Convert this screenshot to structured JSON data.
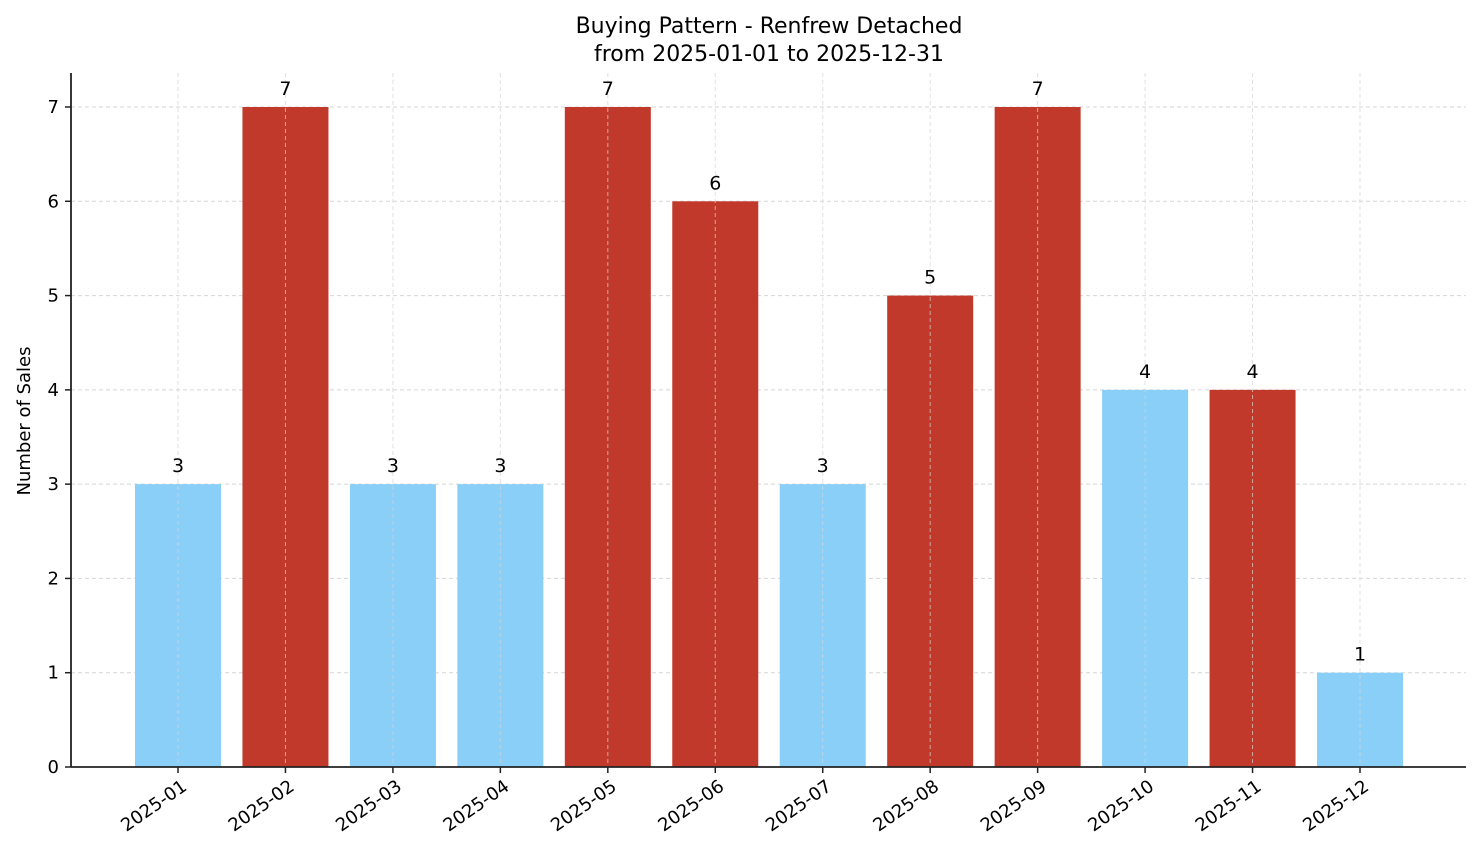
{
  "chart_data": {
    "type": "bar",
    "title": "Buying Pattern - Renfrew Detached",
    "subtitle": "from 2025-01-01 to 2025-12-31",
    "xlabel": "",
    "ylabel": "Number of Sales",
    "categories": [
      "2025-01",
      "2025-02",
      "2025-03",
      "2025-04",
      "2025-05",
      "2025-06",
      "2025-07",
      "2025-08",
      "2025-09",
      "2025-10",
      "2025-11",
      "2025-12"
    ],
    "values": [
      3,
      7,
      3,
      3,
      7,
      6,
      3,
      5,
      7,
      4,
      4,
      1
    ],
    "bar_colors": [
      "#89CFF8",
      "#C0392B",
      "#89CFF8",
      "#89CFF8",
      "#C0392B",
      "#C0392B",
      "#89CFF8",
      "#C0392B",
      "#C0392B",
      "#89CFF8",
      "#C0392B",
      "#89CFF8"
    ],
    "ylim": [
      0,
      7.35
    ],
    "yticks": [
      0,
      1,
      2,
      3,
      4,
      5,
      6,
      7
    ],
    "grid": true,
    "legend": null,
    "data_labels": true,
    "xtick_rotation": 35
  },
  "colors": {
    "high": "#C0392B",
    "low": "#89CFF8",
    "grid": "#d5d5d5",
    "axis": "#222222"
  }
}
